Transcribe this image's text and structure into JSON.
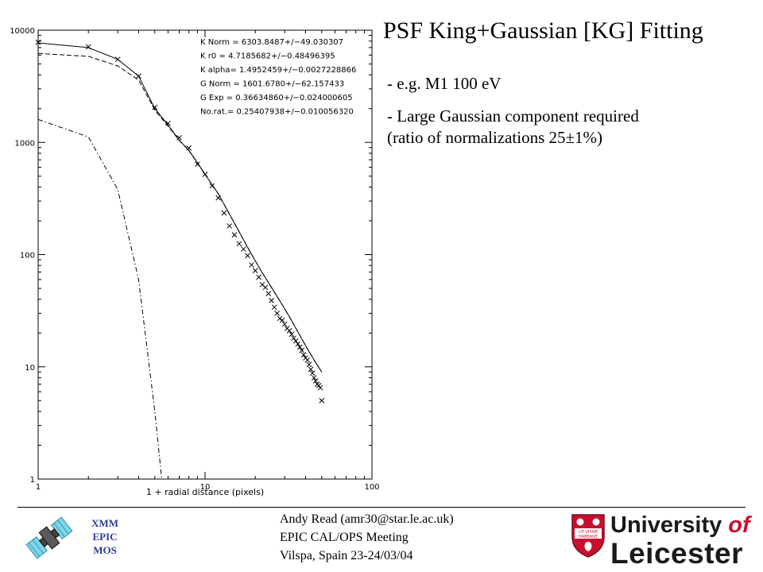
{
  "slide": {
    "title": "PSF King+Gaussian [KG] Fitting",
    "bullets": [
      "- e.g. M1 100 eV",
      "- Large Gaussian component required",
      "(ratio of normalizations 25±1%)"
    ]
  },
  "footer": {
    "author": "Andy Read (amr30@star.le.ac.uk)",
    "meeting": "EPIC CAL/OPS Meeting",
    "place": "Vilspa, Spain 23-24/03/04",
    "xmm_label": [
      "XMM",
      "EPIC",
      "MOS"
    ],
    "logo": {
      "crest_motto_1": "UT VITAM",
      "crest_motto_2": "HABEANT",
      "university": "University",
      "of": "of",
      "city": "Leicester",
      "brand_red": "#c8102e"
    },
    "satellite_icon": "xmm-satellite-icon"
  },
  "chart_data": {
    "type": "line",
    "xlabel": "1 + radial distance (pixels)",
    "ylabel": "",
    "x_scale": "log",
    "y_scale": "log",
    "xlim": [
      1,
      100
    ],
    "ylim": [
      1,
      10000
    ],
    "x_ticks": [
      {
        "value": 1,
        "label": "1"
      },
      {
        "value": 10,
        "label": "10"
      },
      {
        "value": 100,
        "label": "100"
      }
    ],
    "y_ticks": [
      {
        "value": 1,
        "label": "1"
      },
      {
        "value": 10,
        "label": "10"
      },
      {
        "value": 100,
        "label": "100"
      },
      {
        "value": 1000,
        "label": "1000"
      },
      {
        "value": 10000,
        "label": "10000"
      }
    ],
    "grid": false,
    "annotations": [
      "K Norm = 6303.8487+/−49.030307",
      "K r0   = 4.7185682+/−0.48496395",
      "K alpha= 1.4952459+/−0.0027228866",
      "G Norm = 1601.6780+/−62.157433",
      "G Exp  = 0.36634860+/−0.024000605",
      "No.rat.= 0.25407938+/−0.010056320"
    ],
    "series": [
      {
        "style": "markers-x",
        "x": [
          1,
          2,
          3,
          4,
          5,
          6,
          7,
          8,
          9,
          10,
          11,
          12,
          13,
          14,
          15,
          16,
          17,
          18,
          19,
          20,
          21,
          22,
          23,
          24,
          25,
          26,
          27,
          28,
          29,
          30,
          31,
          32,
          33,
          34,
          35,
          36,
          37,
          38,
          39,
          40,
          41,
          42,
          43,
          44,
          45,
          46,
          47,
          48,
          49,
          50
        ],
        "y": [
          7800,
          7100,
          5500,
          3900,
          2050,
          1480,
          1100,
          890,
          640,
          520,
          410,
          320,
          235,
          180,
          150,
          125,
          112,
          98,
          81,
          72,
          63,
          54,
          51,
          45,
          39,
          34,
          30,
          27,
          26,
          24,
          22,
          21,
          19.5,
          18,
          17,
          16,
          15,
          14,
          12.8,
          12,
          11.5,
          10.5,
          9.5,
          8.8,
          8,
          7.5,
          7,
          6.8,
          6.5,
          5
        ]
      },
      {
        "style": "solid",
        "x": [
          1,
          2,
          3,
          4,
          5,
          6,
          7,
          8,
          9,
          10,
          12,
          14,
          16,
          18,
          20,
          22,
          25,
          28,
          32,
          36,
          40,
          45,
          50
        ],
        "y": [
          7700,
          7000,
          5500,
          3900,
          2000,
          1430,
          1050,
          850,
          660,
          520,
          350,
          230,
          160,
          116,
          88,
          69,
          51,
          39,
          28,
          20.5,
          15.5,
          11.5,
          9.0
        ]
      },
      {
        "style": "dashed",
        "x": [
          1,
          2,
          3,
          4,
          5,
          6,
          7,
          8,
          9,
          10,
          12,
          14,
          16,
          18,
          20,
          22,
          25,
          28,
          32,
          36,
          40,
          45,
          50
        ],
        "y": [
          6200,
          5850,
          4800,
          3600,
          1940,
          1400,
          1040,
          845,
          655,
          518,
          348,
          229,
          160,
          116,
          88,
          69,
          51,
          39,
          28,
          20.5,
          15.5,
          11.5,
          9.0
        ]
      },
      {
        "style": "dash-dot",
        "x": [
          1,
          2,
          3,
          4,
          5,
          5.5
        ],
        "y": [
          1600,
          1120,
          380,
          60,
          4,
          1
        ]
      }
    ]
  }
}
